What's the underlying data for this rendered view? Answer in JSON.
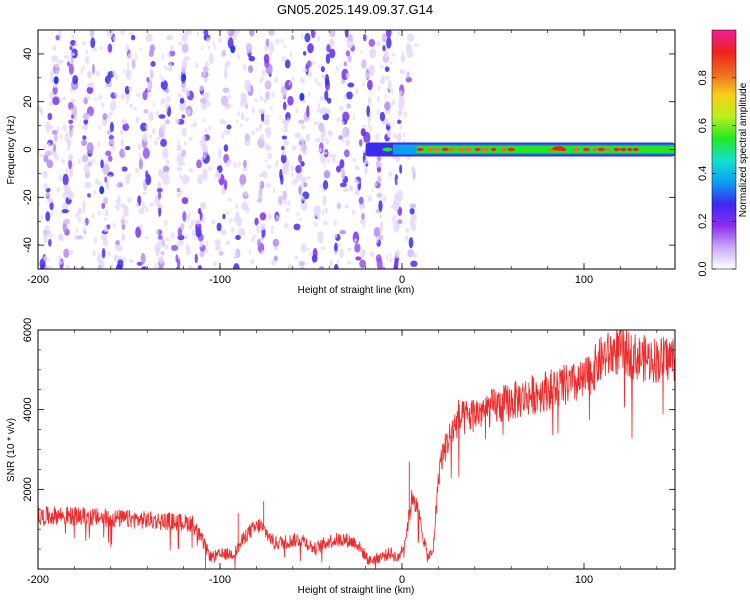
{
  "figure_title": "GN05.2025.149.09.37.G14",
  "chart_data": [
    {
      "type": "heatmap",
      "title": "GN05.2025.149.09.37.G14",
      "xlabel": "Height of straight line (km)",
      "ylabel": "Frequency (Hz)",
      "xlim": [
        -200,
        150
      ],
      "ylim": [
        -50,
        50
      ],
      "x_ticks": [
        -200,
        -100,
        0,
        100
      ],
      "y_ticks": [
        -40,
        -20,
        0,
        20,
        40
      ],
      "colorbar": {
        "label": "Normalized spectral amplitude",
        "range": [
          0,
          1
        ],
        "ticks": [
          "0.0",
          "0.2",
          "0.4",
          "0.6",
          "0.8"
        ],
        "colors": [
          "#ffffff",
          "#c9a8f5",
          "#8c2df0",
          "#3b2bf0",
          "#0aa0f0",
          "#12e0d0",
          "#22e822",
          "#b8f01e",
          "#f8d01a",
          "#f06a20",
          "#ee2020",
          "#f0209a"
        ]
      },
      "regions": [
        {
          "description_x_range": [
            -200,
            8
          ],
          "content": "scattered low-amplitude clusters in diagonal streaks across full frequency range"
        },
        {
          "description_x_range": [
            -20,
            150
          ],
          "content": "narrow band near 0 Hz with high amplitude"
        }
      ],
      "streak_x_positions": [
        -196,
        -186,
        -176,
        -165,
        -155,
        -144,
        -134,
        -123,
        -112,
        -101,
        -90,
        -79,
        -68,
        -57,
        -46,
        -35,
        -24,
        -13,
        -3,
        6
      ],
      "band": {
        "center_hz": 0,
        "half_width_hz": 2.5,
        "x_start": -20,
        "x_end": 150,
        "peak_segments": [
          [
            10,
            52
          ],
          [
            56,
            62
          ],
          [
            83,
            92
          ],
          [
            96,
            130
          ]
        ]
      }
    },
    {
      "type": "line",
      "xlabel": "Height of straight line (km)",
      "ylabel": "SNR (10 * v/v)",
      "xlim": [
        -200,
        150
      ],
      "ylim": [
        0,
        6000
      ],
      "x_ticks": [
        -200,
        -100,
        0,
        100
      ],
      "y_ticks": [
        2000,
        4000,
        6000
      ],
      "color": "#ee2a2a",
      "envelope": {
        "x": [
          -200,
          -190,
          -170,
          -150,
          -130,
          -115,
          -105,
          -100,
          -92,
          -85,
          -78,
          -70,
          -62,
          -55,
          -48,
          -40,
          -32,
          -25,
          -18,
          -12,
          -6,
          -2,
          2,
          6,
          10,
          14,
          17,
          19,
          21,
          25,
          30,
          40,
          60,
          80,
          100,
          110,
          120,
          130,
          140,
          150
        ],
        "y": [
          1300,
          1350,
          1300,
          1250,
          1200,
          1150,
          300,
          350,
          400,
          900,
          1100,
          650,
          700,
          750,
          500,
          700,
          750,
          650,
          200,
          300,
          400,
          250,
          800,
          1900,
          1200,
          300,
          400,
          1700,
          2700,
          3200,
          3700,
          3900,
          4200,
          4500,
          4700,
          5300,
          5500,
          5300,
          5250,
          5300
        ]
      },
      "spikes": [
        {
          "x": -108,
          "y": 0
        },
        {
          "x": -90,
          "y": 1400
        },
        {
          "x": -76,
          "y": 1700
        },
        {
          "x": 4,
          "y": 2700
        },
        {
          "x": 31,
          "y": 4250
        },
        {
          "x": 118,
          "y": 6050
        }
      ]
    }
  ]
}
